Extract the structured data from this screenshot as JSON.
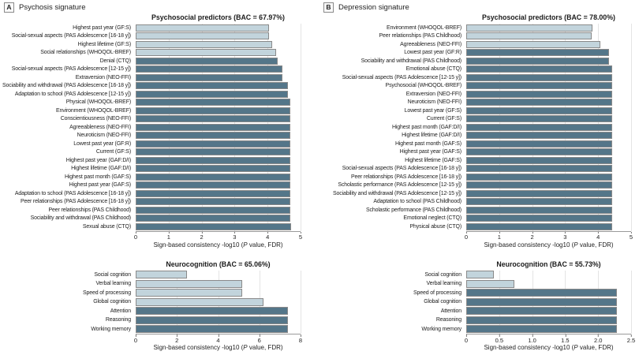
{
  "palette": {
    "light_bar": "#c2d4dc",
    "dark_bar": "#547689",
    "bar_border": "#8a8a8a",
    "gridline": "#e4e4e4"
  },
  "panels": [
    {
      "letter": "A",
      "title": "Psychosis signature"
    },
    {
      "letter": "B",
      "title": "Depression signature"
    }
  ],
  "axis_label": {
    "pre": "Sign-based consistency -log10 (",
    "italic": "P",
    "post": " value, FDR)"
  },
  "chart_data": [
    {
      "id": "psychosis-psychosocial",
      "type": "bar",
      "title": "Psychosocial predictors (BAC = 67.97%)",
      "xlabel": "Sign-based consistency -log10 (P value, FDR)",
      "xlim": [
        0,
        5
      ],
      "tick_values": [
        0,
        1,
        2,
        3,
        4,
        5
      ],
      "ticks": [
        "0",
        "1",
        "2",
        "3",
        "4",
        "5"
      ],
      "n_light": 4,
      "legend": "light bars = lower consistency group, dark bars = higher consistency group",
      "categories": [
        "Highest past year (GF:S)",
        "Social-sexual aspects (PAS Adolescence [16-18 y])",
        "Highest lifetime (GF:S)",
        "Social relationships (WHOQOL-BREF)",
        "Denial (CTQ)",
        "Social-sexual aspects (PAS Adolescence [12-15 y])",
        "Extraversion (NEO-FFI)",
        "Sociability and withdrawal (PAS Adolescence [16-18 y])",
        "Adaptation to school (PAS Adolescence [12-15 y])",
        "Physical (WHOQOL-BREF)",
        "Environment (WHOQOL-BREF)",
        "Conscientiousness (NEO-FFI)",
        "Agreeableness (NEO-FFI)",
        "Neuroticism (NEO-FFI)",
        "Lowest past year (GF:R)",
        "Current (GF:S)",
        "Highest past year (GAF:D/I)",
        "Highest lifetime (GAF:D/I)",
        "Highest past month (GAF:S)",
        "Highest past year (GAF:S)",
        "Adaptation to school (PAS Adolescence [16-18 y])",
        "Peer relationships (PAS Adolescence [16-18 y])",
        "Peer relationships (PAS Childhood)",
        "Sociability and withdrawal (PAS Childhood)",
        "Sexual abuse (CTQ)"
      ],
      "values": [
        4.05,
        4.05,
        4.15,
        4.25,
        4.3,
        4.45,
        4.45,
        4.62,
        4.62,
        4.7,
        4.7,
        4.7,
        4.7,
        4.7,
        4.7,
        4.7,
        4.7,
        4.7,
        4.7,
        4.7,
        4.7,
        4.7,
        4.7,
        4.7,
        4.72
      ]
    },
    {
      "id": "psychosis-neurocognition",
      "type": "bar",
      "title": "Neurocognition (BAC = 65.06%)",
      "xlabel": "Sign-based consistency -log10 (P value, FDR)",
      "xlim": [
        0,
        8
      ],
      "tick_values": [
        0,
        2,
        4,
        6,
        8
      ],
      "ticks": [
        "0",
        "2",
        "4",
        "6",
        "8"
      ],
      "n_light": 4,
      "categories": [
        "Social cognition",
        "Verbal learning",
        "Speed of processing",
        "Global cognition",
        "Attention",
        "Reasoning",
        "Working memory"
      ],
      "values": [
        2.5,
        5.15,
        5.15,
        6.2,
        7.4,
        7.4,
        7.4
      ]
    },
    {
      "id": "depression-psychosocial",
      "type": "bar",
      "title": "Psychosocial predictors (BAC = 78.00%)",
      "xlabel": "Sign-based consistency -log10 (P value, FDR)",
      "xlim": [
        0,
        5
      ],
      "tick_values": [
        0,
        1,
        2,
        3,
        4,
        5
      ],
      "ticks": [
        "0",
        "1",
        "2",
        "3",
        "4",
        "5"
      ],
      "n_light": 3,
      "categories": [
        "Environment (WHOQOL-BREF)",
        "Peer relationships (PAS Childhood)",
        "Agreeableness (NEO-FFI)",
        "Lowest past year (GF:R)",
        "Sociability and withdrawal (PAS Childhood)",
        "Emotional abuse (CTQ)",
        "Social-sexual aspects (PAS Adolescence [12-15 y])",
        "Psychosocial (WHOQOL-BREF)",
        "Extraversion (NEO-FFI)",
        "Neuroticism (NEO-FFI)",
        "Lowest past year (GF:S)",
        "Current (GF:S)",
        "Highest past month (GAF:D/I)",
        "Highest lifetime (GAF:D/I)",
        "Highest past month (GAF:S)",
        "Highest past year (GAF:S)",
        "Highest lifetime (GAF:S)",
        "Social-sexual aspects (PAS Adolescence [16-18 y])",
        "Peer relationships (PAS Adolescence [16-18 y])",
        "Scholastic performance (PAS Adolescence [12-15 y])",
        "Sociability and withdrawal (PAS Adolescence [12-15 y])",
        "Adaptation to school (PAS Childhood)",
        "Scholastic performance (PAS Childhood)",
        "Emotional neglect (CTQ)",
        "Physical abuse (CTQ)"
      ],
      "values": [
        3.82,
        3.8,
        4.07,
        4.32,
        4.34,
        4.42,
        4.43,
        4.43,
        4.43,
        4.43,
        4.43,
        4.43,
        4.43,
        4.43,
        4.43,
        4.43,
        4.43,
        4.43,
        4.43,
        4.43,
        4.43,
        4.43,
        4.43,
        4.43,
        4.43
      ]
    },
    {
      "id": "depression-neurocognition",
      "type": "bar",
      "title": "Neurocognition (BAC = 55.73%)",
      "xlabel": "Sign-based consistency -log10 (P value, FDR)",
      "xlim": [
        0,
        2.5
      ],
      "tick_values": [
        0,
        0.5,
        1.0,
        1.5,
        2.0,
        2.5
      ],
      "ticks": [
        "0",
        "0.5",
        "1.0",
        "1.5",
        "2.0",
        "2.5"
      ],
      "n_light": 2,
      "categories": [
        "Social cognition",
        "Verbal learning",
        "Speed of processing",
        "Global cognition",
        "Attention",
        "Reasoning",
        "Working memory"
      ],
      "values": [
        0.42,
        0.73,
        2.28,
        2.28,
        2.28,
        2.28,
        2.28
      ]
    }
  ]
}
